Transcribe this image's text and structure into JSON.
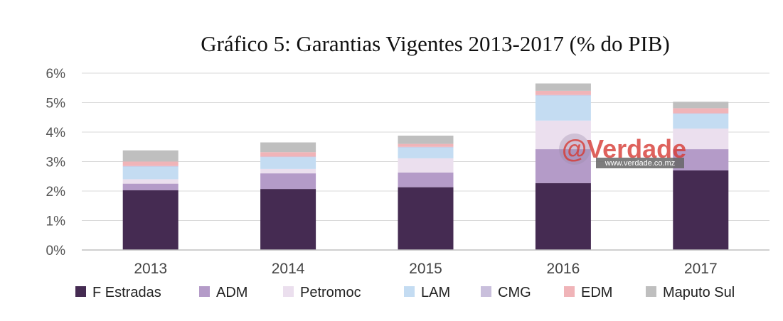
{
  "chart_data": {
    "type": "bar",
    "stacked": true,
    "title": "Gráfico 5: Garantias Vigentes 2013-2017 (% do PIB)",
    "xlabel": "",
    "ylabel": "",
    "ylim": [
      0,
      6
    ],
    "yticks": [
      "0%",
      "1%",
      "2%",
      "3%",
      "4%",
      "5%",
      "6%"
    ],
    "grid": true,
    "legend_position": "bottom",
    "categories": [
      "2013",
      "2014",
      "2015",
      "2016",
      "2017"
    ],
    "series": [
      {
        "name": "F Estradas",
        "color": "#452b52",
        "values": [
          2.03,
          2.07,
          2.13,
          2.27,
          2.7
        ]
      },
      {
        "name": "ADM",
        "color": "#b49bc8",
        "values": [
          0.22,
          0.53,
          0.5,
          1.15,
          0.72
        ]
      },
      {
        "name": "Petromoc",
        "color": "#ebdfee",
        "values": [
          0.15,
          0.15,
          0.48,
          0.97,
          0.7
        ]
      },
      {
        "name": "LAM",
        "color": "#c4dcf2",
        "values": [
          0.43,
          0.4,
          0.37,
          0.85,
          0.5
        ]
      },
      {
        "name": "CMG",
        "color": "#c9bfdc",
        "values": [
          0.02,
          0.02,
          0.02,
          0.02,
          0.02
        ]
      },
      {
        "name": "EDM",
        "color": "#f0b4b8",
        "values": [
          0.15,
          0.15,
          0.1,
          0.14,
          0.17
        ]
      },
      {
        "name": "Maputo Sul",
        "color": "#bfbfbf",
        "values": [
          0.38,
          0.33,
          0.28,
          0.25,
          0.22
        ]
      }
    ]
  },
  "watermark": {
    "brand": "@Verdade",
    "url": "www.verdade.co.mz"
  }
}
